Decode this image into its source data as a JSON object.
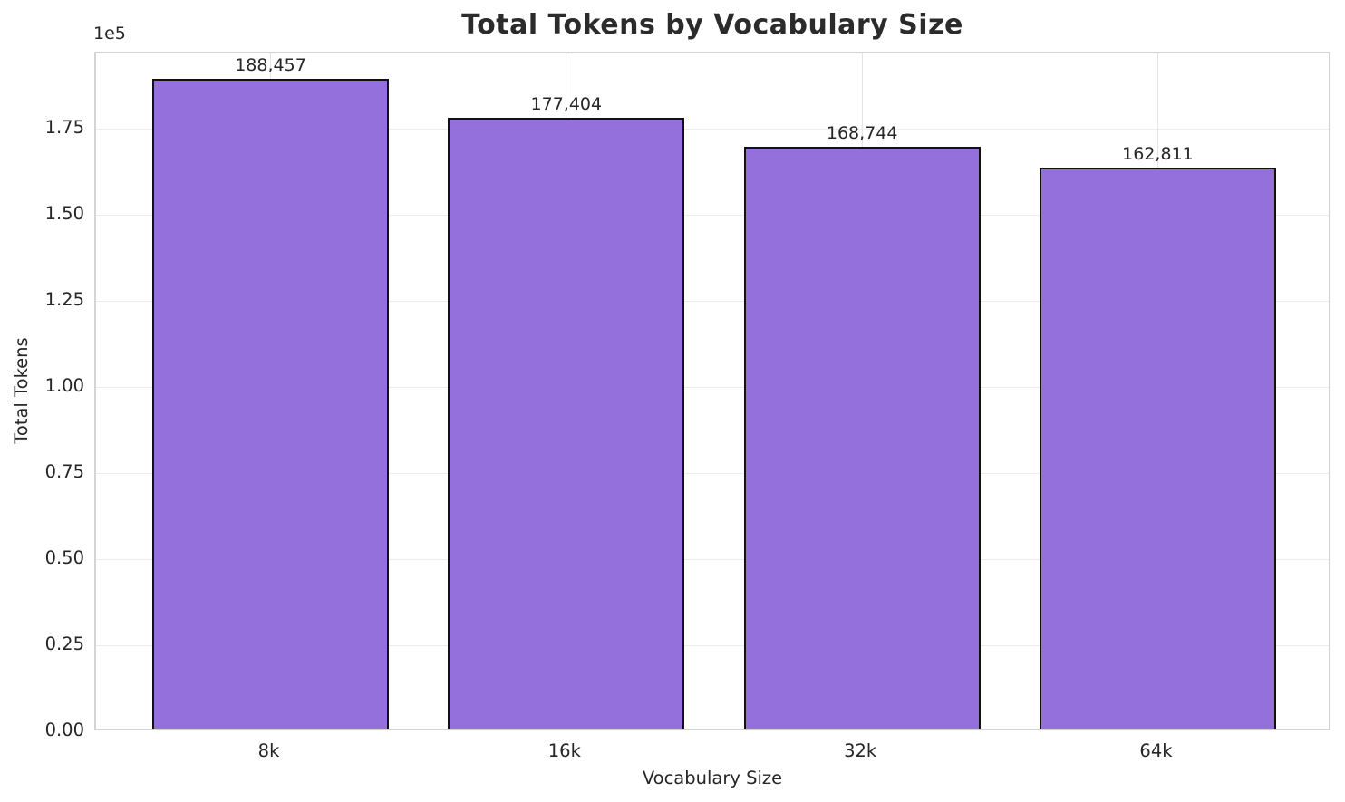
{
  "figure": {
    "background": "#ffffff"
  },
  "chart_data": {
    "type": "bar",
    "title": "Total Tokens by Vocabulary Size",
    "categories": [
      "8k",
      "16k",
      "32k",
      "64k"
    ],
    "values": [
      188457,
      177404,
      168744,
      162811
    ],
    "value_labels": [
      "188,457",
      "177,404",
      "168,744",
      "162,811"
    ],
    "xlabel": "Vocabulary Size",
    "ylabel": "Total Tokens",
    "y_scale_label": "1e5",
    "ylim": [
      0,
      197000
    ],
    "xlim": [
      -0.59,
      3.59
    ],
    "bar_width_units": 0.8,
    "yticks": [
      0,
      25000,
      50000,
      75000,
      100000,
      125000,
      150000,
      175000
    ],
    "ytick_labels": [
      "0.00",
      "0.25",
      "0.50",
      "0.75",
      "1.00",
      "1.25",
      "1.50",
      "1.75"
    ],
    "grid": true,
    "legend_position": "none",
    "bar_color": "#9370DB",
    "bar_edge_color": "#111111",
    "grid_color_h": "#ececec",
    "grid_color_v": "#e4e4e4",
    "spine_color": "#d4d4d4",
    "text_color": "#262626"
  }
}
